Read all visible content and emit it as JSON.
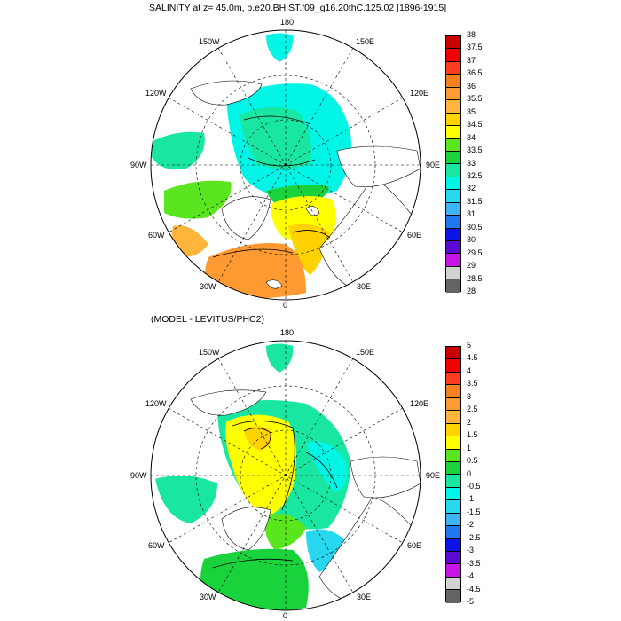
{
  "panels": [
    {
      "title": "SALINITY at z=  45.0m, b.e20.BHIST.f09_g16.20thC.125.02 [1896-1915]",
      "lon_labels": {
        "top": "180",
        "bottom": "0",
        "left": "90W",
        "right": "90E",
        "upper_left": "150W",
        "upper_right": "150E",
        "mid_left_upper": "120W",
        "mid_right_upper": "120E",
        "mid_left_lower": "60W",
        "mid_right_lower": "60E",
        "lower_left": "30W",
        "lower_right": "30E"
      },
      "colorbar": {
        "labels": [
          "38",
          "37.5",
          "37",
          "36.5",
          "36",
          "35.5",
          "35",
          "34.5",
          "34",
          "33.5",
          "33",
          "32.5",
          "32",
          "31.5",
          "31",
          "30.5",
          "30",
          "29.5",
          "29",
          "28.5",
          "28"
        ],
        "colors": [
          "#c80000",
          "#f00000",
          "#ff3c1e",
          "#f5801e",
          "#ff9a32",
          "#ffb43c",
          "#ffd200",
          "#ffff00",
          "#5ae61e",
          "#19d23c",
          "#19e6a0",
          "#00f5e6",
          "#28d7f0",
          "#3cb4f5",
          "#1e78f0",
          "#0a14e6",
          "#5a0ad2",
          "#c814e6",
          "#d2d2d2",
          "#646464"
        ]
      }
    },
    {
      "title": "(MODEL - LEVITUS/PHC2)",
      "lon_labels": {
        "top": "180",
        "bottom": "0",
        "left": "90W",
        "right": "90E",
        "upper_left": "150W",
        "upper_right": "150E",
        "mid_left_upper": "120W",
        "mid_right_upper": "120E",
        "mid_left_lower": "60W",
        "mid_right_lower": "60E",
        "lower_left": "30W",
        "lower_right": "30E"
      },
      "colorbar": {
        "labels": [
          "5",
          "4.5",
          "4",
          "3.5",
          "3",
          "2.5",
          "2",
          "1.5",
          "1",
          "0.5",
          "0",
          "-0.5",
          "-1",
          "-1.5",
          "-2",
          "-2.5",
          "-3",
          "-3.5",
          "-4",
          "-4.5",
          "-5"
        ],
        "colors": [
          "#c80000",
          "#f00000",
          "#ff3c1e",
          "#f5801e",
          "#ff9a32",
          "#ffb43c",
          "#ffd200",
          "#ffff00",
          "#5ae61e",
          "#19d23c",
          "#19e6a0",
          "#00f5e6",
          "#28d7f0",
          "#3cb4f5",
          "#1e78f0",
          "#0a14e6",
          "#5a0ad2",
          "#c814e6",
          "#d2d2d2",
          "#646464"
        ]
      }
    }
  ]
}
